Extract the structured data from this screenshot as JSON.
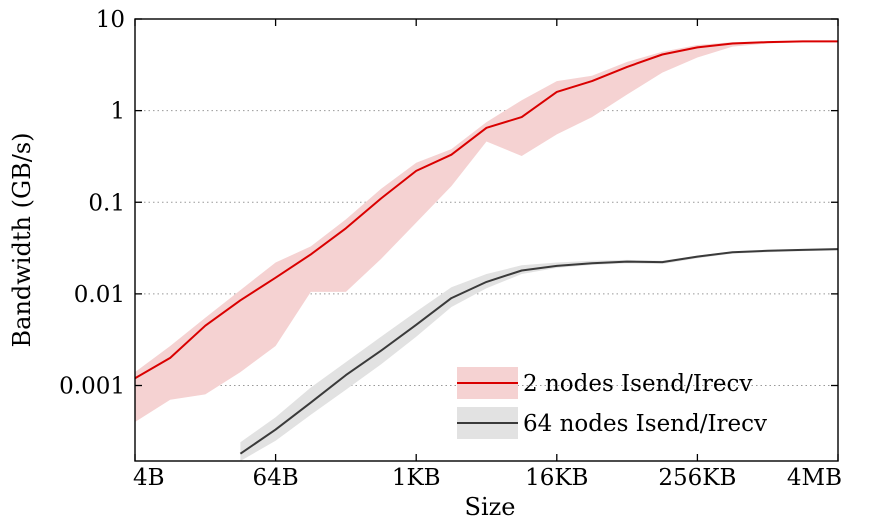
{
  "chart_data": {
    "type": "line",
    "xlabel": "Size",
    "ylabel": "Bandwidth (GB/s)",
    "x_scale": "log2",
    "y_scale": "log10",
    "x_ticks": [
      "4B",
      "64B",
      "1KB",
      "16KB",
      "256KB",
      "4MB"
    ],
    "y_ticks": [
      "10",
      "1",
      "0.1",
      "0.01",
      "0.001"
    ],
    "x_unit": "bytes",
    "x": [
      4,
      8,
      16,
      32,
      64,
      128,
      256,
      512,
      1024,
      2048,
      4096,
      8192,
      16384,
      32768,
      65536,
      131072,
      262144,
      524288,
      1048576,
      2097152,
      4194304
    ],
    "ylim": [
      0.00015,
      10
    ],
    "grid": "horizontal-dotted",
    "legend_position": "bottom-right",
    "series": [
      {
        "name": "2 nodes Isend/Irecv",
        "color": "#d90000",
        "band_color": "#f5d2d2",
        "values": [
          0.0012,
          0.002,
          0.0045,
          0.0085,
          0.015,
          0.027,
          0.052,
          0.11,
          0.22,
          0.33,
          0.65,
          0.85,
          1.6,
          2.1,
          3.0,
          4.1,
          4.9,
          5.4,
          5.6,
          5.7,
          5.7
        ],
        "band_low": [
          0.0004,
          0.0007,
          0.0008,
          0.0014,
          0.0027,
          0.0105,
          0.0105,
          0.024,
          0.06,
          0.15,
          0.46,
          0.32,
          0.55,
          0.85,
          1.5,
          2.6,
          3.8,
          5.0,
          5.4,
          5.6,
          5.7
        ],
        "band_high": [
          0.0014,
          0.0027,
          0.0055,
          0.011,
          0.022,
          0.033,
          0.065,
          0.14,
          0.27,
          0.38,
          0.75,
          1.3,
          2.1,
          2.4,
          3.4,
          4.4,
          5.2,
          5.6,
          5.7,
          5.8,
          5.8
        ]
      },
      {
        "name": "64 nodes Isend/Irecv",
        "color": "#3a3a3a",
        "band_color": "#e2e2e2",
        "values": [
          null,
          null,
          null,
          0.00018,
          0.00033,
          0.00065,
          0.0013,
          0.0024,
          0.0046,
          0.009,
          0.0135,
          0.018,
          0.0202,
          0.0216,
          0.0225,
          0.0222,
          0.0255,
          0.0285,
          0.0295,
          0.0302,
          0.0308
        ],
        "band_low": [
          null,
          null,
          null,
          0.00015,
          0.00025,
          0.00048,
          0.0009,
          0.0017,
          0.0034,
          0.0072,
          0.0115,
          0.0165,
          0.0192,
          0.0207,
          0.0215,
          0.0212,
          0.0245,
          0.0275,
          0.0285,
          0.0293,
          0.0298
        ],
        "band_high": [
          null,
          null,
          0.00016,
          0.00024,
          0.00045,
          0.00095,
          0.0018,
          0.0034,
          0.0064,
          0.0118,
          0.0165,
          0.0205,
          0.022,
          0.023,
          0.0235,
          0.023,
          0.0262,
          0.029,
          0.03,
          0.0308,
          0.0315
        ]
      }
    ]
  }
}
